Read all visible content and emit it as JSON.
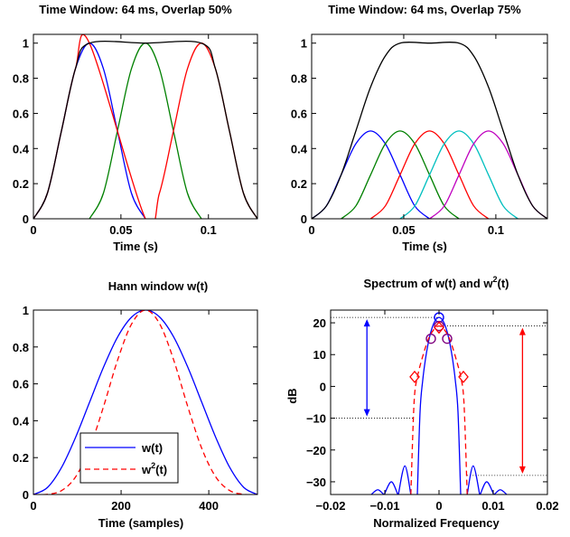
{
  "chart_data": [
    {
      "type": "line",
      "title": "Time Window: 64 ms, Overlap 50%",
      "xlabel": "Time (s)",
      "ylabel": "",
      "xlim": [
        0,
        0.128
      ],
      "ylim": [
        0,
        1.05
      ],
      "xticks": [
        0,
        0.05,
        0.1
      ],
      "xtick_labels": [
        "0",
        "0.05",
        "0.1"
      ],
      "yticks": [
        0,
        0.2,
        0.4,
        0.6,
        0.8,
        1
      ],
      "ytick_labels": [
        "0",
        "0.2",
        "0.4",
        "0.6",
        "0.8",
        "1"
      ],
      "grid": false,
      "series": [
        {
          "color": "#0000ff",
          "x": [
            0,
            0.008,
            0.016,
            0.024,
            0.032,
            0.04,
            0.048,
            0.056,
            0.064
          ],
          "y": [
            0,
            0.146,
            0.5,
            0.854,
            1,
            0.854,
            0.5,
            0.146,
            0
          ]
        },
        {
          "color": "#008000",
          "x": [
            0.032,
            0.04,
            0.048,
            0.056,
            0.064,
            0.072,
            0.08,
            0.088,
            0.096
          ],
          "y": [
            0,
            0.146,
            0.5,
            0.854,
            1,
            0.854,
            0.5,
            0.146,
            0
          ]
        },
        {
          "color": "#ff0000",
          "x": [
            0,
            0.008,
            0.016,
            0.024,
            0.032,
            0.064,
            0.072,
            0.08,
            0.088,
            0.096,
            0.104,
            0.112,
            0.12,
            0.128
          ],
          "y": [
            0,
            0.146,
            0.5,
            0.854,
            1,
            0,
            0.146,
            0.5,
            0.854,
            1,
            0.854,
            0.5,
            0.146,
            0
          ]
        },
        {
          "color": "#000000",
          "x": [
            0,
            0.008,
            0.016,
            0.024,
            0.032,
            0.064,
            0.096,
            0.104,
            0.112,
            0.12,
            0.128
          ],
          "y": [
            0,
            0.146,
            0.5,
            0.854,
            1,
            1,
            1,
            0.854,
            0.5,
            0.146,
            0
          ]
        }
      ]
    },
    {
      "type": "line",
      "title": "Time Window: 64 ms, Overlap 75%",
      "xlabel": "Time (s)",
      "ylabel": "",
      "xlim": [
        0,
        0.128
      ],
      "ylim": [
        0,
        1.05
      ],
      "xticks": [
        0,
        0.05,
        0.1
      ],
      "xtick_labels": [
        "0",
        "0.05",
        "0.1"
      ],
      "yticks": [
        0,
        0.2,
        0.4,
        0.6,
        0.8,
        1
      ],
      "ytick_labels": [
        "0",
        "0.2",
        "0.4",
        "0.6",
        "0.8",
        "1"
      ],
      "grid": false,
      "series": [
        {
          "color": "#0000ff",
          "x": [
            0,
            0.008,
            0.016,
            0.024,
            0.032,
            0.04,
            0.048,
            0.056,
            0.064
          ],
          "y": [
            0,
            0.073,
            0.25,
            0.427,
            0.5,
            0.427,
            0.25,
            0.073,
            0
          ]
        },
        {
          "color": "#008000",
          "x": [
            0.016,
            0.024,
            0.032,
            0.04,
            0.048,
            0.056,
            0.064,
            0.072,
            0.08
          ],
          "y": [
            0,
            0.073,
            0.25,
            0.427,
            0.5,
            0.427,
            0.25,
            0.073,
            0
          ]
        },
        {
          "color": "#ff0000",
          "x": [
            0.032,
            0.04,
            0.048,
            0.056,
            0.064,
            0.072,
            0.08,
            0.088,
            0.096
          ],
          "y": [
            0,
            0.073,
            0.25,
            0.427,
            0.5,
            0.427,
            0.25,
            0.073,
            0
          ]
        },
        {
          "color": "#00bfbf",
          "x": [
            0.048,
            0.056,
            0.064,
            0.072,
            0.08,
            0.088,
            0.096,
            0.104,
            0.112
          ],
          "y": [
            0,
            0.073,
            0.25,
            0.427,
            0.5,
            0.427,
            0.25,
            0.073,
            0
          ]
        },
        {
          "color": "#bf00bf",
          "x": [
            0.064,
            0.072,
            0.08,
            0.088,
            0.096,
            0.104,
            0.112,
            0.12,
            0.128
          ],
          "y": [
            0,
            0.073,
            0.25,
            0.427,
            0.5,
            0.427,
            0.25,
            0.073,
            0
          ]
        },
        {
          "color": "#000000",
          "x": [
            0,
            0.008,
            0.016,
            0.024,
            0.032,
            0.04,
            0.048,
            0.064,
            0.08,
            0.088,
            0.096,
            0.104,
            0.112,
            0.12,
            0.128
          ],
          "y": [
            0,
            0.073,
            0.25,
            0.5,
            0.75,
            0.927,
            1,
            1,
            1,
            0.927,
            0.75,
            0.5,
            0.25,
            0.073,
            0
          ]
        }
      ]
    },
    {
      "type": "line",
      "title": "Hann window w(t)",
      "xlabel": "Time (samples)",
      "ylabel": "",
      "xlim": [
        0,
        511
      ],
      "ylim": [
        0,
        1
      ],
      "xticks": [
        0,
        200,
        400
      ],
      "xtick_labels": [
        "0",
        "200",
        "400"
      ],
      "yticks": [
        0,
        0.2,
        0.4,
        0.6,
        0.8,
        1
      ],
      "ytick_labels": [
        "0",
        "0.2",
        "0.4",
        "0.6",
        "0.8",
        "1"
      ],
      "grid": false,
      "legend": {
        "placement": "bottom-center",
        "entries": [
          "w(t)",
          "w",
          "2",
          "(t)"
        ]
      },
      "series": [
        {
          "name": "w(t)",
          "color": "#0000ff",
          "dash": "solid",
          "x": [
            0,
            32,
            64,
            96,
            128,
            160,
            192,
            224,
            256,
            288,
            320,
            352,
            384,
            416,
            448,
            480,
            511
          ],
          "y": [
            0,
            0.038,
            0.146,
            0.309,
            0.5,
            0.691,
            0.854,
            0.962,
            1,
            0.962,
            0.854,
            0.691,
            0.5,
            0.309,
            0.146,
            0.038,
            0
          ]
        },
        {
          "name": "w²(t)",
          "color": "#ff0000",
          "dash": "dashed",
          "x": [
            0,
            32,
            64,
            96,
            128,
            160,
            192,
            224,
            256,
            288,
            320,
            352,
            384,
            416,
            448,
            480,
            511
          ],
          "y": [
            0,
            0.001,
            0.021,
            0.095,
            0.25,
            0.477,
            0.729,
            0.925,
            1,
            0.925,
            0.729,
            0.477,
            0.25,
            0.095,
            0.021,
            0.001,
            0
          ]
        }
      ]
    },
    {
      "type": "line",
      "title": "Spectrum of w(t) and w",
      "title_sup": "2",
      "title_tail": "(t)",
      "xlabel": "Normalized Frequency",
      "ylabel": "dB",
      "xlim": [
        -0.02,
        0.02
      ],
      "ylim": [
        -34,
        24
      ],
      "xticks": [
        -0.02,
        -0.01,
        0,
        0.01,
        0.02
      ],
      "xtick_labels": [
        "−0.02",
        "−0.01",
        "0",
        "0.01",
        "0.02"
      ],
      "yticks": [
        -30,
        -20,
        -10,
        0,
        10,
        20
      ],
      "ytick_labels": [
        "−30",
        "−20",
        "−10",
        "0",
        "10",
        "20"
      ],
      "grid": false,
      "reference_lines_db": [
        21.7,
        -10,
        19,
        -28
      ],
      "series": [
        {
          "name": "w(t)",
          "color": "#0000ff",
          "dash": "solid",
          "x": [
            -0.004,
            -0.0035,
            -0.003,
            -0.0025,
            -0.002,
            -0.0015,
            -0.001,
            -0.0005,
            0,
            0.0005,
            0.001,
            0.0015,
            0.002,
            0.0025,
            0.003,
            0.0035,
            0.004
          ],
          "y": [
            -34,
            -8,
            2,
            8.6,
            13.5,
            17.2,
            19.7,
            21.2,
            21.7,
            21.2,
            19.7,
            17.2,
            13.5,
            8.6,
            2,
            -8,
            -34
          ]
        },
        {
          "name": "w(t) sidelobe",
          "color": "#0000ff",
          "dash": "solid",
          "x": [
            -0.0075,
            -0.0063,
            -0.0052
          ],
          "y": [
            -34,
            -25,
            -34
          ]
        },
        {
          "name": "w(t) sidelobe",
          "color": "#0000ff",
          "dash": "solid",
          "x": [
            0.0052,
            0.0063,
            0.0075
          ],
          "y": [
            -34,
            -25,
            -34
          ]
        },
        {
          "name": "w(t) sidelobe",
          "color": "#0000ff",
          "dash": "solid",
          "x": [
            -0.0101,
            -0.0088,
            -0.0076
          ],
          "y": [
            -34,
            -30,
            -34
          ]
        },
        {
          "name": "w(t) sidelobe",
          "color": "#0000ff",
          "dash": "solid",
          "x": [
            0.0076,
            0.0088,
            0.0101
          ],
          "y": [
            -34,
            -30,
            -34
          ]
        },
        {
          "name": "w(t) sidelobe",
          "color": "#0000ff",
          "dash": "solid",
          "x": [
            -0.0125,
            -0.0113,
            -0.0102
          ],
          "y": [
            -34,
            -32.5,
            -34
          ]
        },
        {
          "name": "w(t) sidelobe",
          "color": "#0000ff",
          "dash": "solid",
          "x": [
            0.0102,
            0.0113,
            0.0125
          ],
          "y": [
            -34,
            -32.5,
            -34
          ]
        },
        {
          "name": "w²(t)",
          "color": "#ff0000",
          "dash": "dashed",
          "x": [
            -0.004,
            -0.0035,
            -0.003,
            -0.0025,
            -0.002,
            -0.0015,
            -0.001,
            -0.0005,
            0,
            0.0005,
            0.001,
            0.0015,
            0.002,
            0.0025,
            0.003,
            0.0035,
            0.004,
            0.0046,
            0.0052
          ],
          "y": [
            3,
            6.5,
            9.5,
            12.3,
            14.7,
            16.5,
            17.8,
            18.7,
            19,
            18.7,
            17.8,
            16.5,
            14.7,
            12.3,
            9.5,
            6.5,
            3,
            -5,
            -34
          ]
        },
        {
          "name": "w²(t) left tail",
          "color": "#ff0000",
          "dash": "dashed",
          "x": [
            -0.0052,
            -0.0046,
            -0.004
          ],
          "y": [
            -34,
            -5,
            3
          ]
        }
      ],
      "markers": [
        {
          "shape": "circle",
          "color": "#0000ff",
          "x": 0,
          "y": 21.7
        },
        {
          "shape": "circle",
          "color": "#7f007f",
          "x": -0.0015,
          "y": 15
        },
        {
          "shape": "circle",
          "color": "#7f007f",
          "x": 0,
          "y": 19
        },
        {
          "shape": "circle",
          "color": "#7f007f",
          "x": 0.0015,
          "y": 15
        },
        {
          "shape": "diamond",
          "color": "#ff0000",
          "x": -0.0045,
          "y": 3
        },
        {
          "shape": "diamond",
          "color": "#ff0000",
          "x": 0,
          "y": 18.5
        },
        {
          "shape": "diamond",
          "color": "#ff0000",
          "x": 0.0045,
          "y": 3
        }
      ],
      "annotations": [
        {
          "type": "double-arrow",
          "color": "#0000ff",
          "x": -0.0133,
          "y1": 21.7,
          "y2": -10
        },
        {
          "type": "double-arrow",
          "color": "#ff0000",
          "x": 0.0154,
          "y1": 19,
          "y2": -28
        }
      ]
    }
  ]
}
